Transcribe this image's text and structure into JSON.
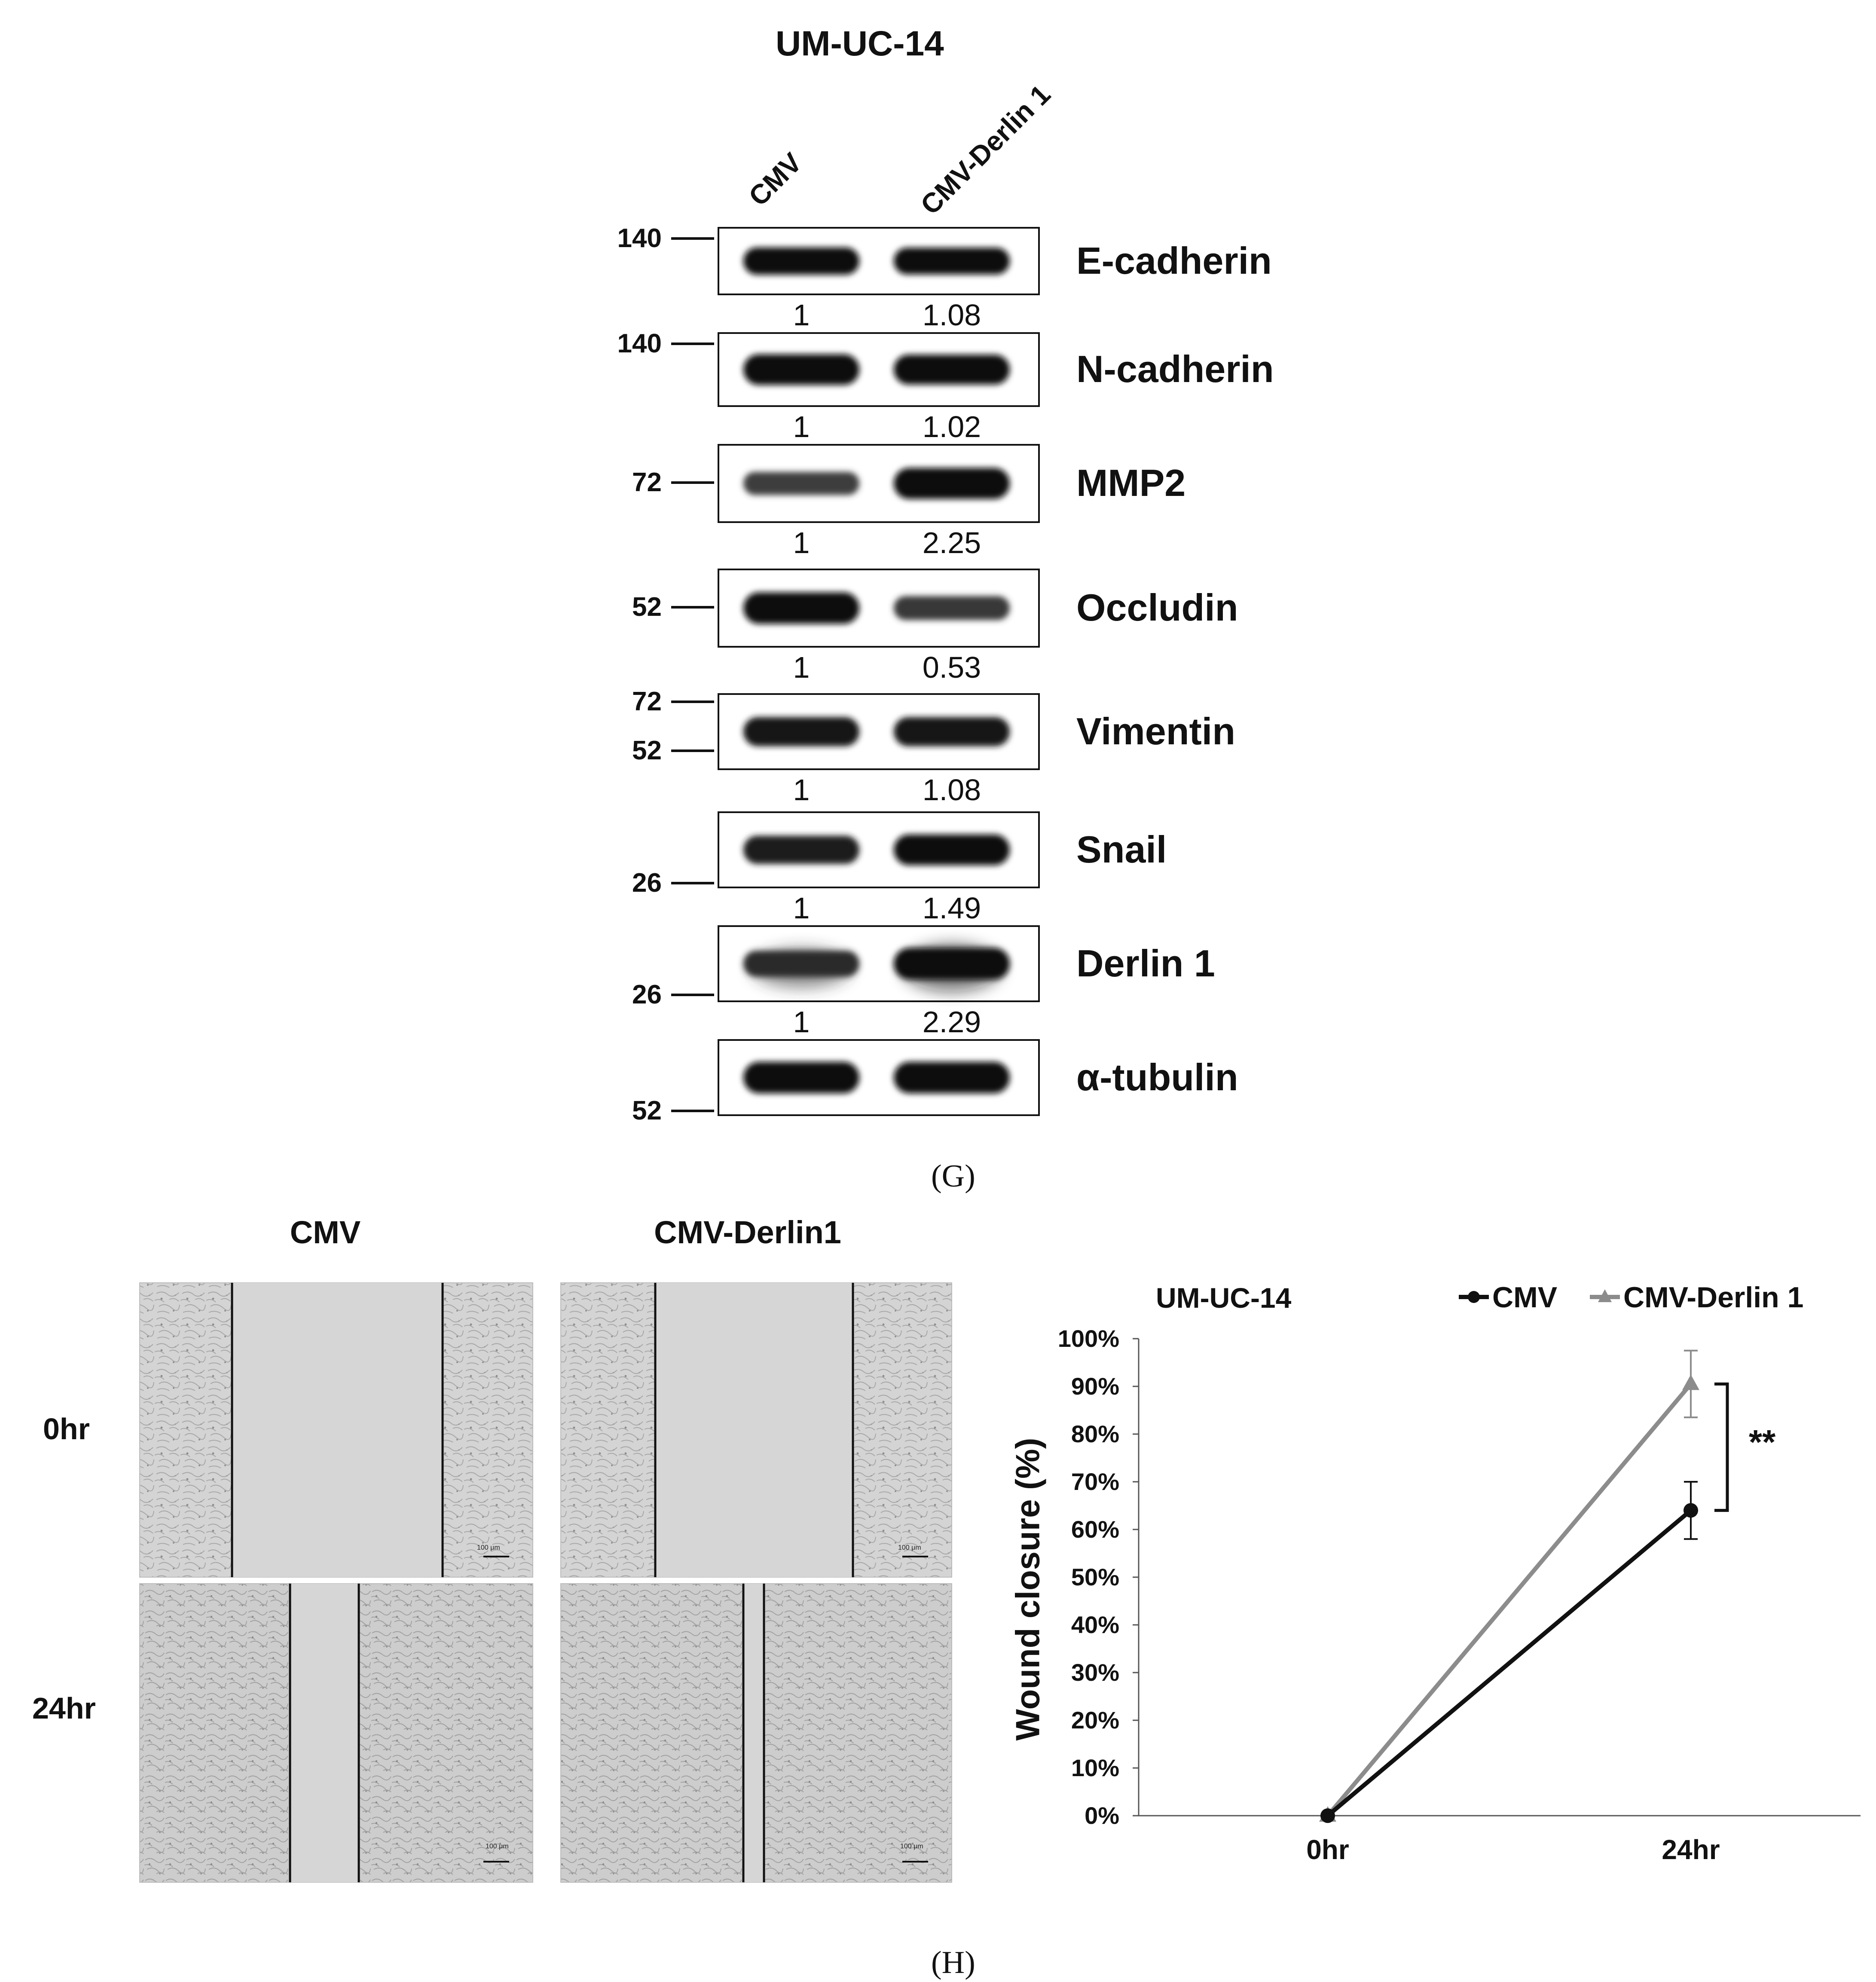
{
  "panel_g": {
    "title": "UM-UC-14",
    "lanes": [
      "CMV",
      "CMV-Derlin 1"
    ],
    "blots": [
      {
        "protein": "E-cadherin",
        "markers": [
          "140"
        ],
        "quant": [
          "1",
          "1.08"
        ],
        "intensity": [
          0.95,
          0.92
        ]
      },
      {
        "protein": "N-cadherin",
        "markers": [
          "140"
        ],
        "quant": [
          "1",
          "1.02"
        ],
        "intensity": [
          1.0,
          0.95
        ]
      },
      {
        "protein": "MMP2",
        "markers": [
          "72"
        ],
        "quant": [
          "1",
          "2.25"
        ],
        "intensity": [
          0.45,
          0.92
        ]
      },
      {
        "protein": "Occludin",
        "markers": [
          "52"
        ],
        "quant": [
          "1",
          "0.53"
        ],
        "intensity": [
          0.95,
          0.5
        ]
      },
      {
        "protein": "Vimentin",
        "markers": [
          "72",
          "52"
        ],
        "quant": [
          "1",
          "1.08"
        ],
        "intensity": [
          0.85,
          0.85
        ]
      },
      {
        "protein": "Snail",
        "markers": [
          "26"
        ],
        "quant": [
          "1",
          "1.49"
        ],
        "intensity": [
          0.8,
          0.95
        ]
      },
      {
        "protein": "Derlin 1",
        "markers": [
          "26"
        ],
        "quant": [
          "1",
          "2.29"
        ],
        "intensity": [
          0.65,
          1.0
        ]
      },
      {
        "protein": "α-tubulin",
        "markers": [
          "52"
        ],
        "quant": [],
        "intensity": [
          1.0,
          1.0
        ]
      }
    ],
    "label": "(G)"
  },
  "panel_h": {
    "columns": [
      "CMV",
      "CMV-Derlin1"
    ],
    "rows": [
      "0hr",
      "24hr"
    ],
    "scale_bar": "100 μm",
    "label": "(H)"
  },
  "chart_data": {
    "type": "line",
    "title": "UM-UC-14",
    "x": [
      "0hr",
      "24hr"
    ],
    "xlabel": "",
    "ylabel": "Wound closure (%)",
    "ylim": [
      0,
      100
    ],
    "yticks": [
      "0%",
      "10%",
      "20%",
      "30%",
      "40%",
      "50%",
      "60%",
      "70%",
      "80%",
      "90%",
      "100%"
    ],
    "series": [
      {
        "name": "CMV",
        "values": [
          0,
          64
        ],
        "error": [
          0,
          6
        ],
        "color": "#111111",
        "marker": "circle"
      },
      {
        "name": "CMV-Derlin 1",
        "values": [
          0,
          90.5
        ],
        "error": [
          0,
          7
        ],
        "color": "#8c8c8c",
        "marker": "triangle"
      }
    ],
    "annotation": "**",
    "legend": "top"
  }
}
